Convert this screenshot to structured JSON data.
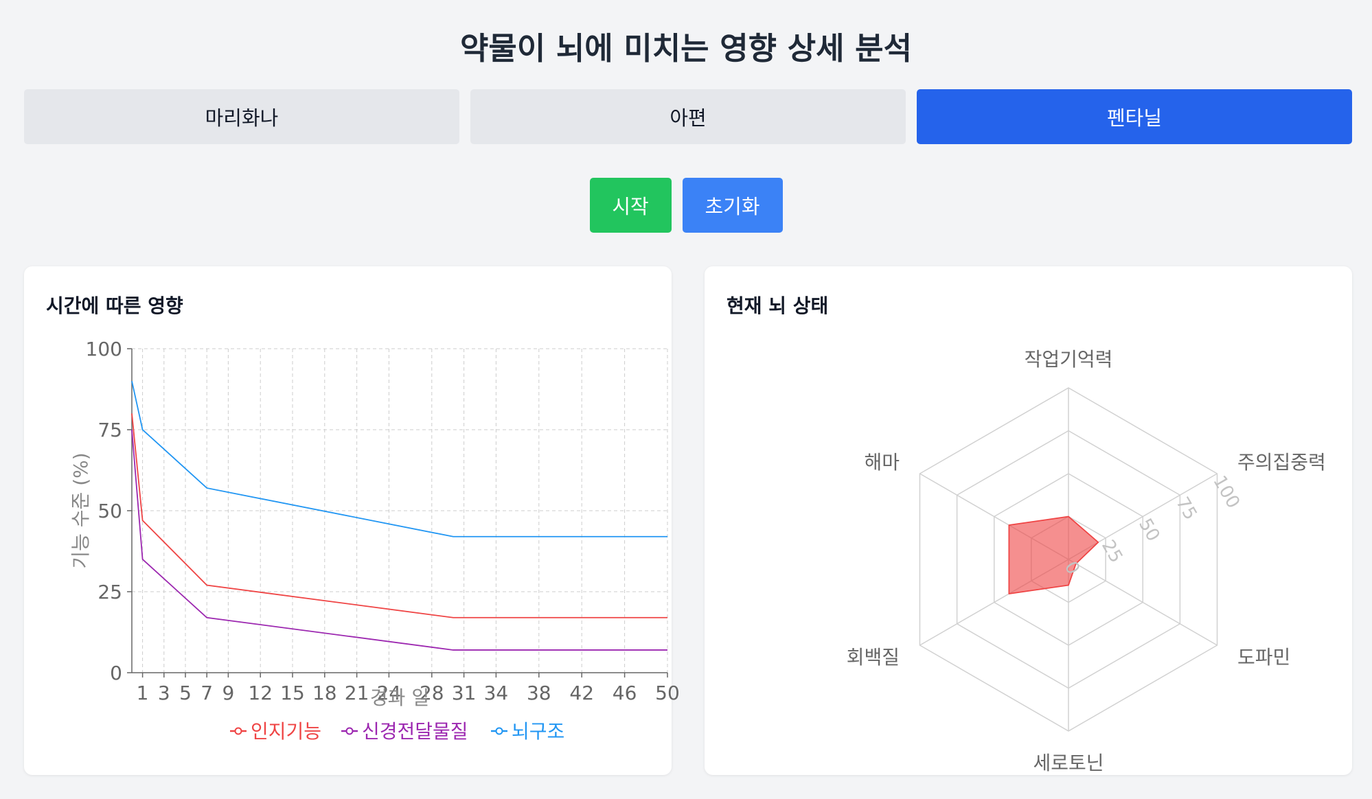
{
  "page": {
    "title": "약물이 뇌에 미치는 영향 상세 분석"
  },
  "tabs": [
    {
      "label": "마리화나",
      "active": false
    },
    {
      "label": "아편",
      "active": false
    },
    {
      "label": "펜타닐",
      "active": true
    }
  ],
  "controls": {
    "start_label": "시작",
    "reset_label": "초기화"
  },
  "colors": {
    "active_tab": "#2563eb",
    "start": "#22c55e",
    "reset": "#3b82f6"
  },
  "panels": {
    "timeline_title": "시간에 따른 영향",
    "status_title": "현재 뇌 상태"
  },
  "chart_data": [
    {
      "type": "line",
      "xlabel": "경과 일",
      "ylabel": "기능 수준 (%)",
      "xlim": [
        0,
        50
      ],
      "ylim": [
        0,
        100
      ],
      "x_ticks": [
        1,
        3,
        5,
        7,
        9,
        12,
        15,
        18,
        21,
        24,
        28,
        31,
        34,
        38,
        42,
        46,
        50
      ],
      "y_ticks": [
        0,
        25,
        50,
        75,
        100
      ],
      "grid": true,
      "legend": "bottom",
      "series": [
        {
          "name": "인지기능",
          "color": "#ef4444",
          "points": [
            [
              0,
              80
            ],
            [
              1,
              47
            ],
            [
              7,
              27
            ],
            [
              30,
              17
            ],
            [
              50,
              17
            ]
          ]
        },
        {
          "name": "신경전달물질",
          "color": "#9c27b0",
          "points": [
            [
              0,
              75
            ],
            [
              1,
              35
            ],
            [
              7,
              17
            ],
            [
              30,
              7
            ],
            [
              50,
              7
            ]
          ]
        },
        {
          "name": "뇌구조",
          "color": "#2196f3",
          "points": [
            [
              0,
              90
            ],
            [
              1,
              75
            ],
            [
              7,
              57
            ],
            [
              30,
              42
            ],
            [
              50,
              42
            ]
          ]
        }
      ]
    },
    {
      "type": "radar",
      "axes": [
        "작업기억력",
        "주의집중력",
        "도파민",
        "세로토닌",
        "회백질",
        "해마"
      ],
      "rlim": [
        0,
        100
      ],
      "r_ticks": [
        0,
        25,
        50,
        75,
        100
      ],
      "color": "#ef4444",
      "values": [
        25,
        20,
        5,
        15,
        40,
        40
      ]
    }
  ]
}
